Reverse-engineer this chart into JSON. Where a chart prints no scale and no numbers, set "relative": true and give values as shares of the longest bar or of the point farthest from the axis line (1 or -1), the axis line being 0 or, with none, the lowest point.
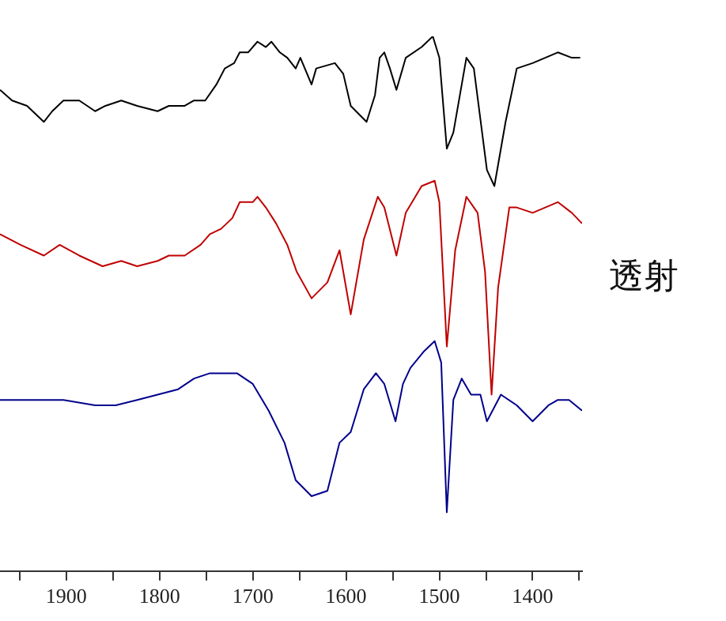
{
  "chart_data": {
    "type": "line",
    "ylabel": "透射",
    "relative": true,
    "grid": false,
    "legend": false,
    "marker": "none",
    "line_style": "solid",
    "tick_labels": "x",
    "xlim": [
      1971,
      1347
    ],
    "xticks": [
      {
        "value": 1950,
        "label": null
      },
      1900,
      {
        "value": 1850,
        "label": null
      },
      1800,
      {
        "value": 1750,
        "label": null
      },
      1700,
      {
        "value": 1650,
        "label": null
      },
      1600,
      {
        "value": 1550,
        "label": null
      },
      1500,
      {
        "value": 1450,
        "label": null
      },
      1400,
      {
        "value": 1350,
        "label": null
      }
    ],
    "series": [
      {
        "color": "#000000",
        "x": [
          1971,
          1958,
          1942,
          1924,
          1915,
          1903,
          1886,
          1869,
          1858,
          1841,
          1824,
          1802,
          1790,
          1773,
          1763,
          1751,
          1739,
          1730,
          1720,
          1714,
          1705,
          1695,
          1686,
          1680,
          1671,
          1663,
          1654,
          1649,
          1637,
          1632,
          1612,
          1603,
          1595,
          1578,
          1569,
          1564,
          1559,
          1553,
          1546,
          1536,
          1519,
          1507,
          1500,
          1492,
          1485,
          1471,
          1463,
          1449,
          1441,
          1429,
          1417,
          1400,
          1373,
          1358,
          1349
        ],
        "values": [
          0.9,
          0.88,
          0.87,
          0.84,
          0.86,
          0.88,
          0.88,
          0.86,
          0.87,
          0.88,
          0.87,
          0.86,
          0.87,
          0.87,
          0.88,
          0.88,
          0.91,
          0.94,
          0.95,
          0.97,
          0.97,
          0.99,
          0.98,
          0.99,
          0.97,
          0.96,
          0.94,
          0.96,
          0.91,
          0.94,
          0.95,
          0.93,
          0.87,
          0.84,
          0.89,
          0.96,
          0.97,
          0.94,
          0.9,
          0.96,
          0.98,
          1.0,
          0.96,
          0.79,
          0.82,
          0.96,
          0.94,
          0.75,
          0.72,
          0.84,
          0.94,
          0.95,
          0.97,
          0.96,
          0.96
        ]
      },
      {
        "color": "#c00000",
        "x": [
          1971,
          1949,
          1924,
          1907,
          1886,
          1861,
          1841,
          1824,
          1802,
          1790,
          1773,
          1756,
          1746,
          1734,
          1722,
          1714,
          1700,
          1695,
          1686,
          1675,
          1663,
          1653,
          1637,
          1620,
          1607,
          1595,
          1581,
          1566,
          1559,
          1546,
          1536,
          1519,
          1505,
          1500,
          1492,
          1483,
          1471,
          1459,
          1451,
          1444,
          1437,
          1425,
          1417,
          1400,
          1373,
          1358,
          1347
        ],
        "values": [
          0.63,
          0.61,
          0.59,
          0.61,
          0.59,
          0.57,
          0.58,
          0.57,
          0.58,
          0.59,
          0.59,
          0.61,
          0.63,
          0.64,
          0.66,
          0.69,
          0.69,
          0.7,
          0.68,
          0.65,
          0.61,
          0.56,
          0.51,
          0.54,
          0.6,
          0.48,
          0.62,
          0.7,
          0.68,
          0.59,
          0.67,
          0.72,
          0.73,
          0.69,
          0.42,
          0.6,
          0.7,
          0.67,
          0.56,
          0.33,
          0.53,
          0.68,
          0.68,
          0.67,
          0.69,
          0.67,
          0.65
        ]
      },
      {
        "color": "#00008b",
        "x": [
          1971,
          1937,
          1903,
          1869,
          1847,
          1824,
          1802,
          1780,
          1763,
          1746,
          1730,
          1717,
          1700,
          1683,
          1666,
          1654,
          1637,
          1620,
          1607,
          1595,
          1581,
          1568,
          1559,
          1547,
          1539,
          1531,
          1517,
          1505,
          1498,
          1492,
          1485,
          1476,
          1466,
          1456,
          1449,
          1434,
          1417,
          1400,
          1383,
          1373,
          1361,
          1347
        ],
        "values": [
          0.32,
          0.32,
          0.32,
          0.31,
          0.31,
          0.32,
          0.33,
          0.34,
          0.36,
          0.37,
          0.37,
          0.37,
          0.35,
          0.3,
          0.24,
          0.17,
          0.14,
          0.15,
          0.24,
          0.26,
          0.34,
          0.37,
          0.35,
          0.28,
          0.35,
          0.38,
          0.41,
          0.43,
          0.39,
          0.11,
          0.32,
          0.36,
          0.33,
          0.33,
          0.28,
          0.33,
          0.31,
          0.28,
          0.31,
          0.32,
          0.32,
          0.3
        ]
      }
    ]
  }
}
